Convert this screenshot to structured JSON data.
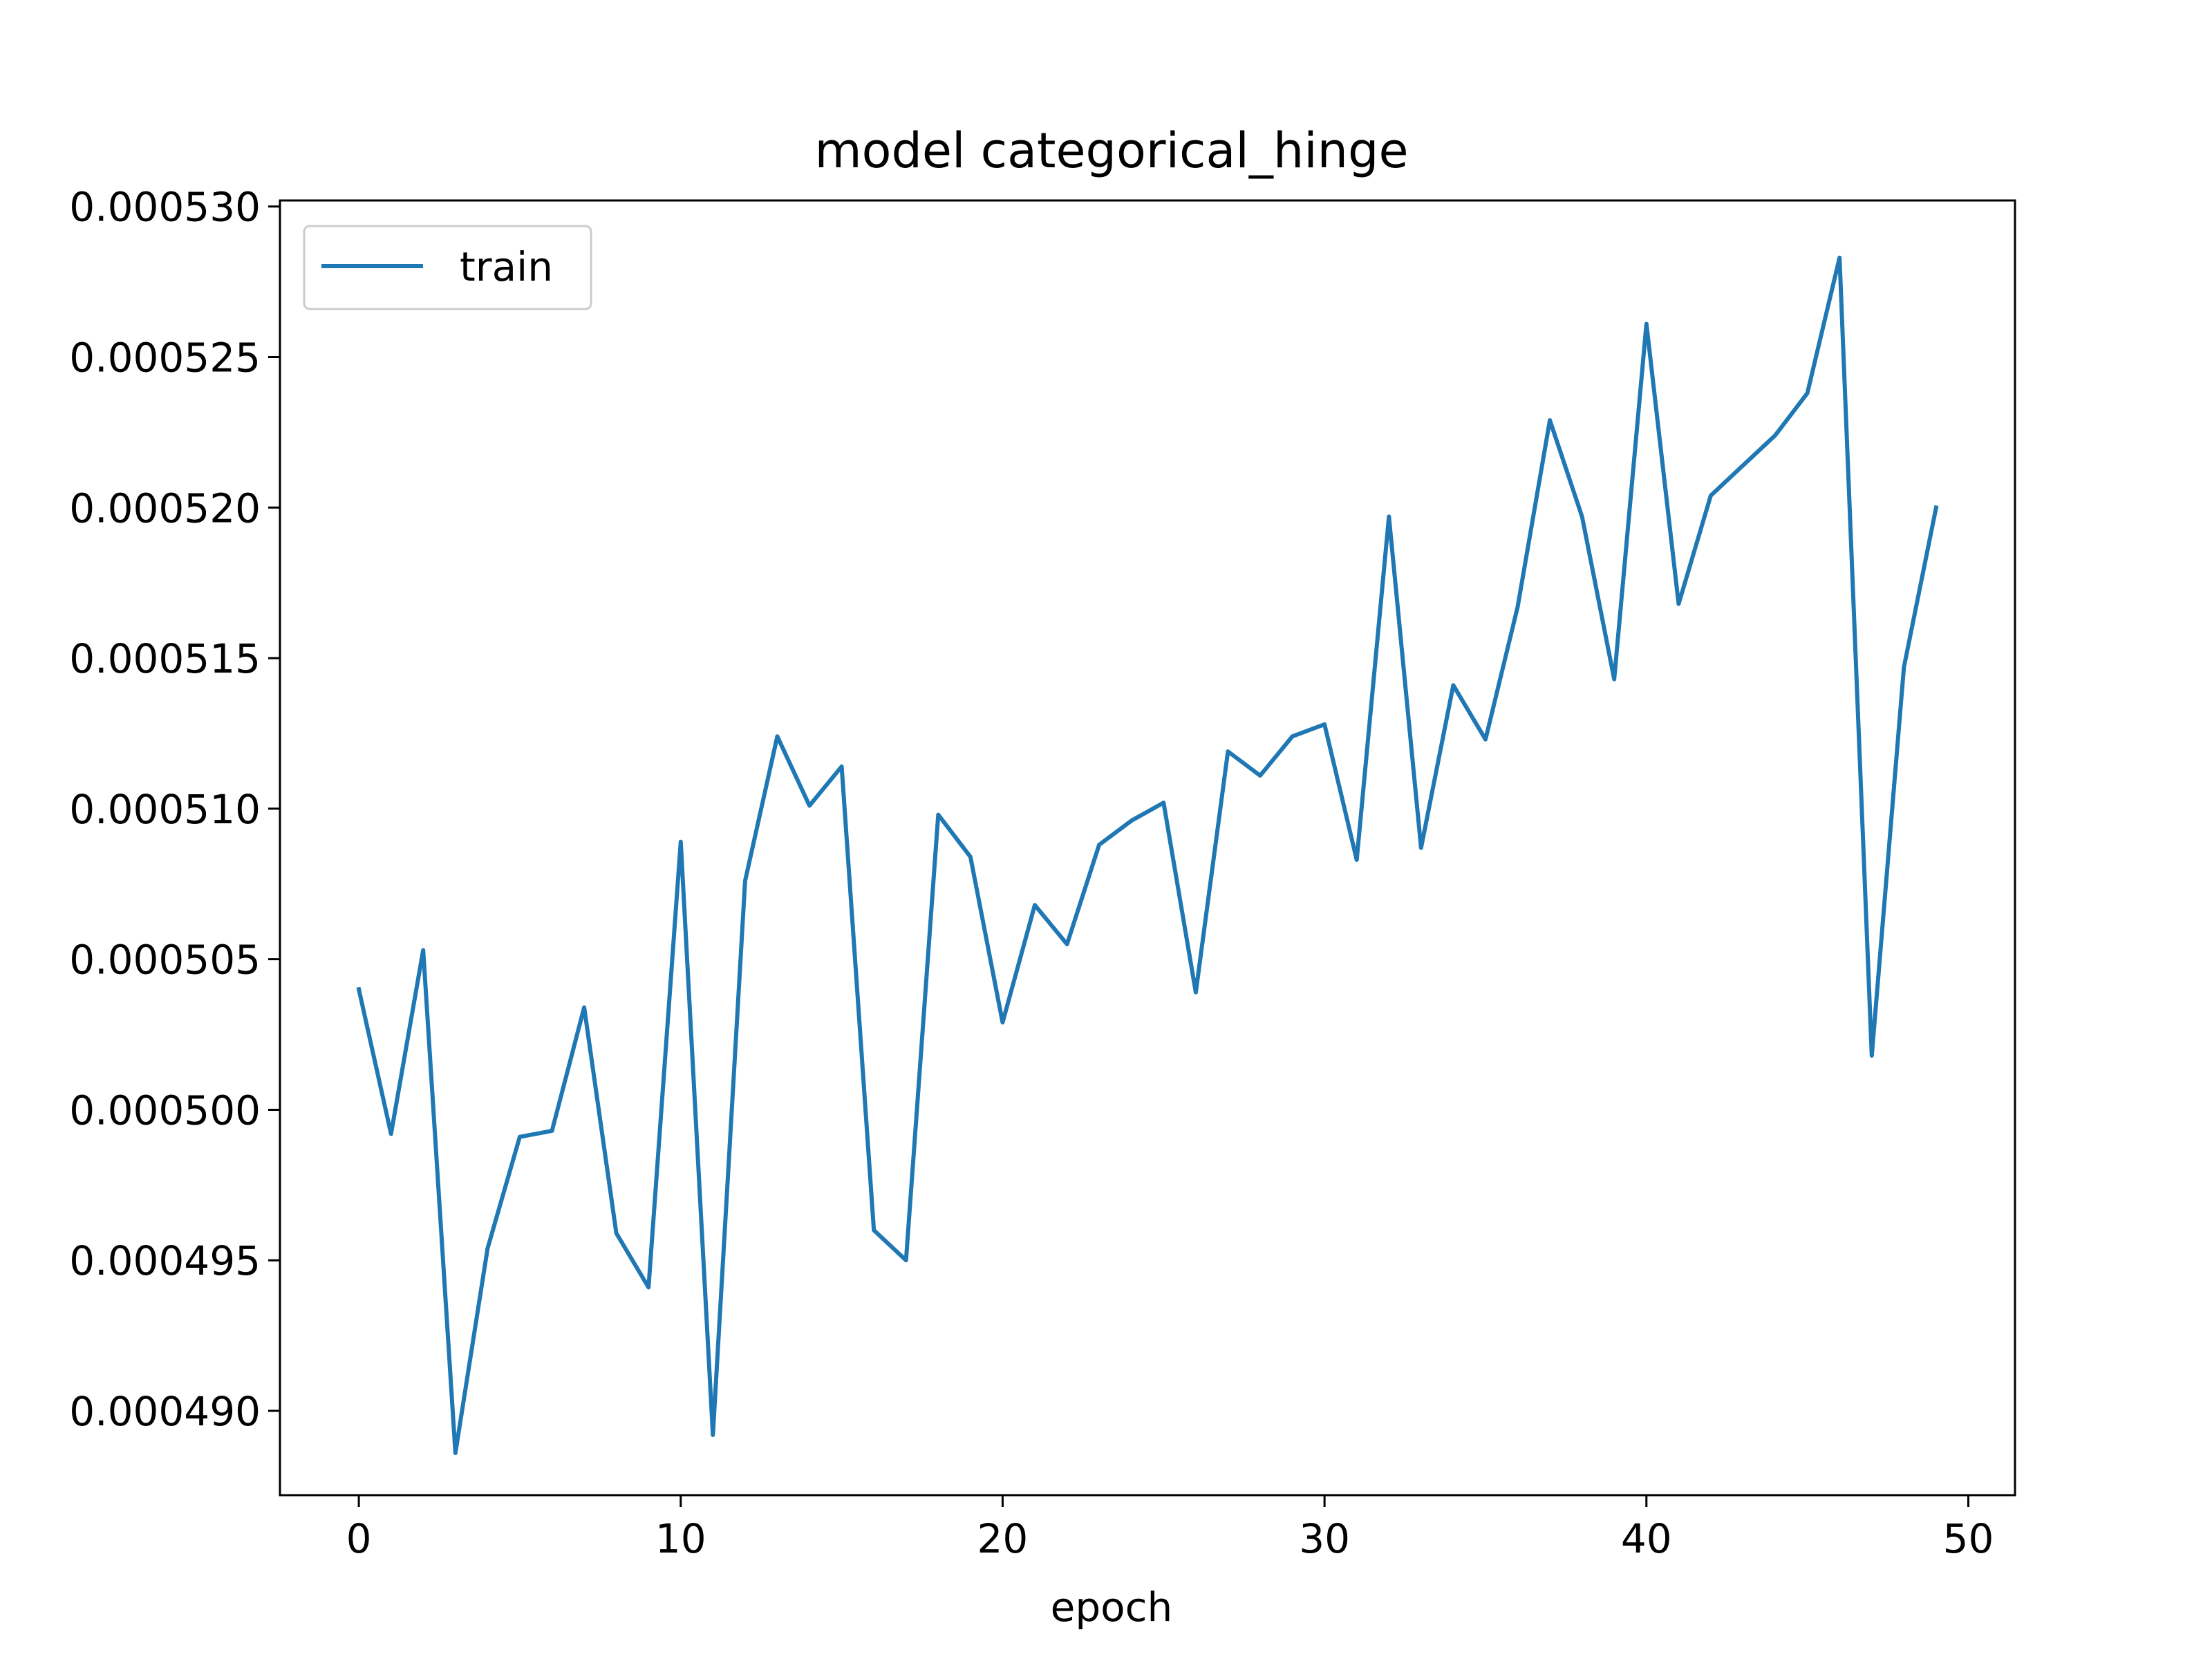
{
  "chart_data": {
    "type": "line",
    "title": "model categorical_hinge",
    "xlabel": "epoch",
    "ylabel": "",
    "x": [
      0,
      1,
      2,
      3,
      4,
      5,
      6,
      7,
      8,
      9,
      10,
      11,
      12,
      13,
      14,
      15,
      16,
      17,
      18,
      19,
      20,
      21,
      22,
      23,
      24,
      25,
      26,
      27,
      28,
      29,
      30,
      31,
      32,
      33,
      34,
      35,
      36,
      37,
      38,
      39,
      40,
      41,
      42,
      43,
      44,
      45,
      46,
      47,
      48,
      49
    ],
    "series": [
      {
        "name": "train",
        "color": "#1f77b4",
        "values": [
          0.000504,
          0.0004992,
          0.0005053,
          0.0004886,
          0.0004954,
          0.0004991,
          0.0004993,
          0.0005034,
          0.0004959,
          0.0004941,
          0.0005089,
          0.0004892,
          0.0005076,
          0.0005124,
          0.0005101,
          0.0005114,
          0.000496,
          0.000495,
          0.0005098,
          0.0005084,
          0.0005029,
          0.0005068,
          0.0005055,
          0.0005088,
          0.0005096,
          0.0005102,
          0.0005039,
          0.0005119,
          0.0005111,
          0.0005124,
          0.0005128,
          0.0005083,
          0.0005197,
          0.0005087,
          0.0005141,
          0.0005123,
          0.0005167,
          0.0005229,
          0.0005197,
          0.0005143,
          0.0005261,
          0.0005168,
          0.0005204,
          0.0005214,
          0.0005224,
          0.0005238,
          0.0005283,
          0.0005018,
          0.0005147,
          0.00052
        ]
      }
    ],
    "xlim": [
      -2.45,
      51.45
    ],
    "ylim": [
      0.0004872,
      0.0005302
    ],
    "xticks": [
      0,
      10,
      20,
      30,
      40,
      50
    ],
    "xtick_labels": [
      "0",
      "10",
      "20",
      "30",
      "40",
      "50"
    ],
    "yticks": [
      0.00049,
      0.000495,
      0.0005,
      0.000505,
      0.00051,
      0.000515,
      0.00052,
      0.000525,
      0.00053
    ],
    "ytick_labels": [
      "0.000490",
      "0.000495",
      "0.000500",
      "0.000505",
      "0.000510",
      "0.000515",
      "0.000520",
      "0.000525",
      "0.000530"
    ],
    "legend": {
      "position": "upper-left",
      "entries": [
        "train"
      ]
    },
    "grid": false
  }
}
